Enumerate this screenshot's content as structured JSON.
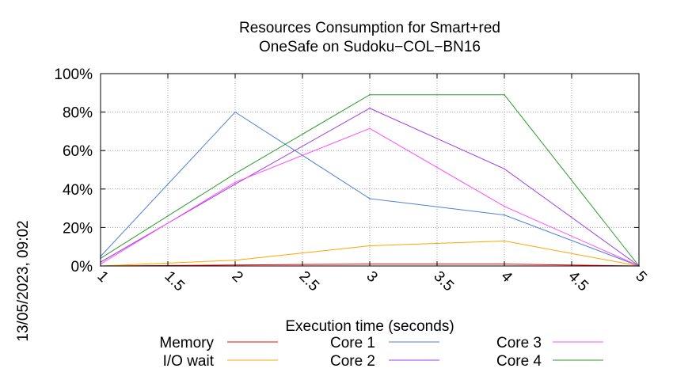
{
  "chart_data": {
    "type": "line",
    "title_line1": "Resources Consumption for Smart+red",
    "title_line2": "OneSafe on Sudoku−COL−BN16",
    "xlabel": "Execution time (seconds)",
    "ylabel": "",
    "side_label": "13/05/2023, 09:02",
    "xlim": [
      1,
      5
    ],
    "ylim": [
      0,
      100
    ],
    "x_ticks": [
      1,
      1.5,
      2,
      2.5,
      3,
      3.5,
      4,
      4.5,
      5
    ],
    "x_tick_labels": [
      "1",
      "1.5",
      "2",
      "2.5",
      "3",
      "3.5",
      "4",
      "4.5",
      "5"
    ],
    "y_ticks": [
      0,
      20,
      40,
      60,
      80,
      100
    ],
    "y_tick_labels": [
      "0%",
      "20%",
      "40%",
      "60%",
      "80%",
      "100%"
    ],
    "grid": true,
    "legend_position": "bottom",
    "x": [
      1,
      2,
      3,
      4,
      5
    ],
    "series": [
      {
        "name": "Memory",
        "color": "#ff0000",
        "values": [
          0,
          0.5,
          1,
          1,
          0
        ]
      },
      {
        "name": "I/O wait",
        "color": "#ffa500",
        "values": [
          0,
          3,
          10.5,
          13,
          0
        ]
      },
      {
        "name": "Core 1",
        "color": "#4f7fd8",
        "values": [
          5,
          80,
          35,
          26.5,
          0
        ]
      },
      {
        "name": "Core 2",
        "color": "#a040e0",
        "values": [
          2,
          42.5,
          82,
          50.5,
          0
        ]
      },
      {
        "name": "Core 3",
        "color": "#ff4dff",
        "values": [
          1,
          43.5,
          71.5,
          31,
          0
        ]
      },
      {
        "name": "Core 4",
        "color": "#2a9a2a",
        "values": [
          4,
          48,
          89,
          89,
          0
        ]
      }
    ]
  }
}
